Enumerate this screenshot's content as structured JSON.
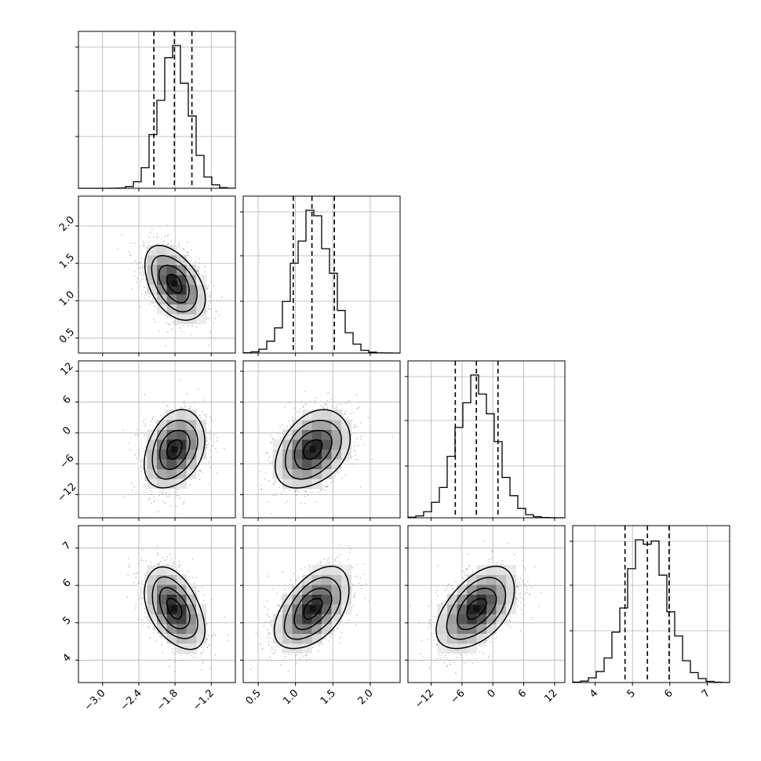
{
  "chart_data": {
    "type": "corner",
    "title": "",
    "parameters": [
      {
        "index": 0,
        "range": [
          -3.4,
          -0.8
        ],
        "ticks": [
          "−3.0",
          "−2.4",
          "−1.8",
          "−1.2"
        ],
        "tick_values": [
          -3.0,
          -2.4,
          -1.8,
          -1.2
        ],
        "quantiles": [
          -2.15,
          -1.81,
          -1.52
        ],
        "mean": -1.81,
        "sd": 0.25
      },
      {
        "index": 1,
        "range": [
          0.3,
          2.4
        ],
        "ticks": [
          "0.5",
          "1.0",
          "1.5",
          "2.0"
        ],
        "tick_values": [
          0.5,
          1.0,
          1.5,
          2.0
        ],
        "quantiles": [
          0.97,
          1.22,
          1.52
        ],
        "mean": 1.23,
        "sd": 0.25
      },
      {
        "index": 2,
        "range": [
          -16.5,
          14.0
        ],
        "ticks": [
          "−12",
          "−6",
          "0",
          "6",
          "12"
        ],
        "tick_values": [
          -12,
          -6,
          0,
          6,
          12
        ],
        "quantiles": [
          -7.3,
          -3.2,
          1.0
        ],
        "mean": -3.2,
        "sd": 3.8
      },
      {
        "index": 3,
        "range": [
          3.4,
          7.6
        ],
        "ticks": [
          "4",
          "5",
          "6",
          "7"
        ],
        "tick_values": [
          4,
          5,
          6,
          7
        ],
        "quantiles": [
          4.8,
          5.4,
          5.98
        ],
        "mean": 5.38,
        "sd": 0.55
      }
    ],
    "correlations": [
      {
        "pair": [
          0,
          1
        ],
        "r": -0.45
      },
      {
        "pair": [
          0,
          2
        ],
        "r": 0.3
      },
      {
        "pair": [
          1,
          2
        ],
        "r": 0.35
      },
      {
        "pair": [
          0,
          3
        ],
        "r": -0.45
      },
      {
        "pair": [
          1,
          3
        ],
        "r": 0.5
      },
      {
        "pair": [
          2,
          3
        ],
        "r": 0.5
      }
    ],
    "histogram_bins": 20,
    "grid": true,
    "colors": {
      "line": "#000000",
      "grid": "#b0b0b0",
      "scatter": "#888888",
      "density_dark": "#111111"
    }
  }
}
